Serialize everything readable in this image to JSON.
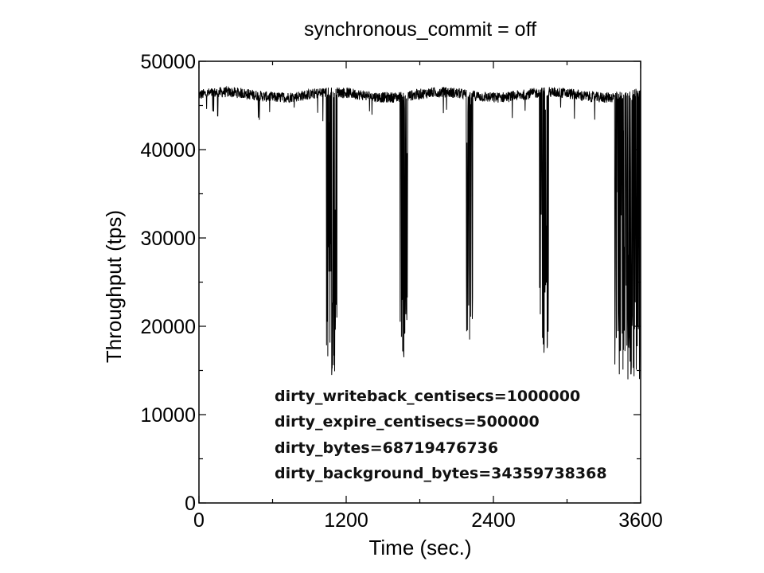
{
  "chart_data": {
    "type": "line",
    "title": "synchronous_commit = off",
    "xlabel": "Time (sec.)",
    "ylabel": "Throughput (tps)",
    "xlim": [
      0,
      3600
    ],
    "ylim": [
      0,
      50000
    ],
    "xticks": [
      0,
      1200,
      2400,
      3600
    ],
    "xtick_labels": [
      "0",
      "1200",
      "2400",
      "3600"
    ],
    "yticks": [
      0,
      10000,
      20000,
      30000,
      40000,
      50000
    ],
    "ytick_labels": [
      "0",
      "10000",
      "20000",
      "30000",
      "40000",
      "50000"
    ],
    "grid": false,
    "legend": "none",
    "baseline_tps": 46200,
    "dips": [
      {
        "start": 1040,
        "end": 1125,
        "min_tps": 14500
      },
      {
        "start": 1640,
        "end": 1700,
        "min_tps": 16500
      },
      {
        "start": 2180,
        "end": 2230,
        "min_tps": 18500
      },
      {
        "start": 2775,
        "end": 2850,
        "min_tps": 17000
      },
      {
        "start": 3390,
        "end": 3600,
        "min_tps": 14000
      }
    ],
    "annotations": [
      "dirty_writeback_centisecs=1000000",
      "dirty_expire_centisecs=500000",
      "dirty_bytes=68719476736",
      "dirty_background_bytes=34359738368"
    ]
  }
}
